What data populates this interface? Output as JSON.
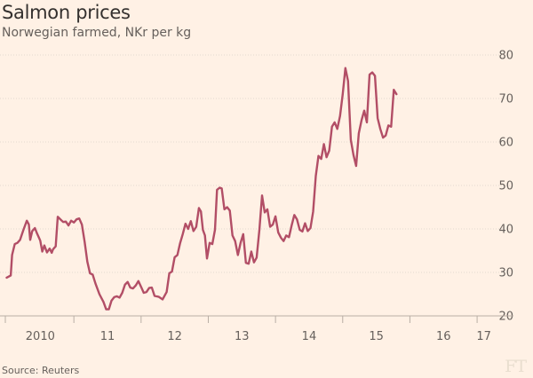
{
  "chart_data": {
    "type": "line",
    "title": "Salmon prices",
    "subtitle": "Norwegian farmed, NKr per kg",
    "source": "Source: Reuters",
    "logo": "FT",
    "ylim": [
      20,
      80
    ],
    "yticks": [
      20,
      30,
      40,
      50,
      60,
      70,
      80
    ],
    "xlim": [
      2009.98,
      2017.25
    ],
    "xticks": [
      {
        "label": "2010",
        "x": 2010.5
      },
      {
        "label": "11",
        "x": 2011.5
      },
      {
        "label": "12",
        "x": 2012.5
      },
      {
        "label": "13",
        "x": 2013.5
      },
      {
        "label": "14",
        "x": 2014.5
      },
      {
        "label": "15",
        "x": 2015.5
      },
      {
        "label": "16",
        "x": 2016.5
      },
      {
        "label": "17",
        "x": 2017.1
      }
    ],
    "xsep": [
      2011,
      2012,
      2013,
      2014,
      2015,
      2016,
      2017
    ],
    "grid": true,
    "color": "#b24e66",
    "series": [
      {
        "name": "",
        "points": [
          [
            2010.0,
            28.8
          ],
          [
            2010.06,
            29.3
          ],
          [
            2010.08,
            34
          ],
          [
            2010.12,
            36.5
          ],
          [
            2010.16,
            36.8
          ],
          [
            2010.2,
            37.5
          ],
          [
            2010.25,
            39.8
          ],
          [
            2010.3,
            41.9
          ],
          [
            2010.33,
            41
          ],
          [
            2010.35,
            37.5
          ],
          [
            2010.38,
            39.5
          ],
          [
            2010.42,
            40.2
          ],
          [
            2010.45,
            39
          ],
          [
            2010.48,
            38
          ],
          [
            2010.5,
            37.3
          ],
          [
            2010.53,
            34.8
          ],
          [
            2010.56,
            36.2
          ],
          [
            2010.6,
            34.6
          ],
          [
            2010.64,
            35.5
          ],
          [
            2010.67,
            34.5
          ],
          [
            2010.69,
            35.3
          ],
          [
            2010.73,
            36
          ],
          [
            2010.76,
            42.8
          ],
          [
            2010.8,
            42.2
          ],
          [
            2010.84,
            41.6
          ],
          [
            2010.88,
            41.7
          ],
          [
            2010.92,
            40.8
          ],
          [
            2010.96,
            41.9
          ],
          [
            2011.0,
            41.5
          ],
          [
            2011.04,
            42.2
          ],
          [
            2011.08,
            42.4
          ],
          [
            2011.12,
            41
          ],
          [
            2011.16,
            37
          ],
          [
            2011.2,
            32.5
          ],
          [
            2011.24,
            29.8
          ],
          [
            2011.28,
            29.5
          ],
          [
            2011.32,
            27.5
          ],
          [
            2011.38,
            25
          ],
          [
            2011.44,
            23.2
          ],
          [
            2011.48,
            21.5
          ],
          [
            2011.52,
            21.5
          ],
          [
            2011.56,
            23.5
          ],
          [
            2011.6,
            24.3
          ],
          [
            2011.64,
            24.5
          ],
          [
            2011.68,
            24.2
          ],
          [
            2011.72,
            25.3
          ],
          [
            2011.76,
            27.2
          ],
          [
            2011.8,
            27.8
          ],
          [
            2011.84,
            26.5
          ],
          [
            2011.88,
            26.3
          ],
          [
            2011.92,
            27
          ],
          [
            2011.96,
            28
          ],
          [
            2012.0,
            26.7
          ],
          [
            2012.04,
            25.3
          ],
          [
            2012.08,
            25.5
          ],
          [
            2012.12,
            26.4
          ],
          [
            2012.16,
            26.5
          ],
          [
            2012.2,
            24.6
          ],
          [
            2012.26,
            24.4
          ],
          [
            2012.32,
            23.8
          ],
          [
            2012.38,
            25.5
          ],
          [
            2012.42,
            29.8
          ],
          [
            2012.46,
            30.2
          ],
          [
            2012.5,
            33.5
          ],
          [
            2012.54,
            34
          ],
          [
            2012.58,
            36.7
          ],
          [
            2012.62,
            38.8
          ],
          [
            2012.66,
            41.2
          ],
          [
            2012.7,
            40
          ],
          [
            2012.74,
            41.8
          ],
          [
            2012.78,
            39.5
          ],
          [
            2012.82,
            40.5
          ],
          [
            2012.86,
            44.8
          ],
          [
            2012.89,
            44
          ],
          [
            2012.92,
            39.8
          ],
          [
            2012.95,
            38.5
          ],
          [
            2012.98,
            33.2
          ],
          [
            2013.02,
            36.8
          ],
          [
            2013.06,
            36.5
          ],
          [
            2013.1,
            39.8
          ],
          [
            2013.13,
            49
          ],
          [
            2013.17,
            49.5
          ],
          [
            2013.2,
            49.3
          ],
          [
            2013.24,
            44.5
          ],
          [
            2013.28,
            45
          ],
          [
            2013.32,
            44.2
          ],
          [
            2013.36,
            38.5
          ],
          [
            2013.4,
            37.2
          ],
          [
            2013.44,
            34
          ],
          [
            2013.48,
            36.8
          ],
          [
            2013.52,
            38.8
          ],
          [
            2013.56,
            32.2
          ],
          [
            2013.6,
            32
          ],
          [
            2013.64,
            34.8
          ],
          [
            2013.68,
            32.3
          ],
          [
            2013.72,
            33.4
          ],
          [
            2013.76,
            39.8
          ],
          [
            2013.8,
            47.7
          ],
          [
            2013.84,
            43.8
          ],
          [
            2013.88,
            44.5
          ],
          [
            2013.92,
            40.5
          ],
          [
            2013.96,
            41
          ],
          [
            2014.0,
            42.9
          ],
          [
            2014.04,
            39.2
          ],
          [
            2014.08,
            38
          ],
          [
            2014.12,
            37.2
          ],
          [
            2014.16,
            38.5
          ],
          [
            2014.2,
            38.1
          ],
          [
            2014.24,
            40.8
          ],
          [
            2014.28,
            43.2
          ],
          [
            2014.32,
            42.2
          ],
          [
            2014.36,
            39.8
          ],
          [
            2014.4,
            39.4
          ],
          [
            2014.44,
            41.3
          ],
          [
            2014.48,
            39.5
          ],
          [
            2014.52,
            40.2
          ],
          [
            2014.56,
            44
          ],
          [
            2014.6,
            52.2
          ],
          [
            2014.64,
            56.8
          ],
          [
            2014.68,
            56.1
          ],
          [
            2014.72,
            59.5
          ],
          [
            2014.76,
            56.5
          ],
          [
            2014.8,
            58
          ],
          [
            2014.84,
            63.5
          ],
          [
            2014.88,
            64.5
          ],
          [
            2014.92,
            63
          ],
          [
            2014.96,
            66
          ],
          [
            2015.0,
            71
          ],
          [
            2015.04,
            77
          ],
          [
            2015.08,
            74
          ],
          [
            2015.12,
            60.5
          ],
          [
            2015.16,
            57
          ],
          [
            2015.2,
            54.5
          ],
          [
            2015.24,
            62
          ],
          [
            2015.28,
            65
          ],
          [
            2015.32,
            67.2
          ],
          [
            2015.36,
            64.5
          ],
          [
            2015.4,
            75.5
          ],
          [
            2015.44,
            76
          ],
          [
            2015.48,
            75.2
          ],
          [
            2015.52,
            65.5
          ],
          [
            2015.56,
            63
          ],
          [
            2015.6,
            61
          ],
          [
            2015.64,
            61.5
          ],
          [
            2015.68,
            63.8
          ],
          [
            2015.72,
            63.5
          ],
          [
            2015.76,
            72
          ],
          [
            2015.8,
            71
          ]
        ]
      }
    ]
  }
}
